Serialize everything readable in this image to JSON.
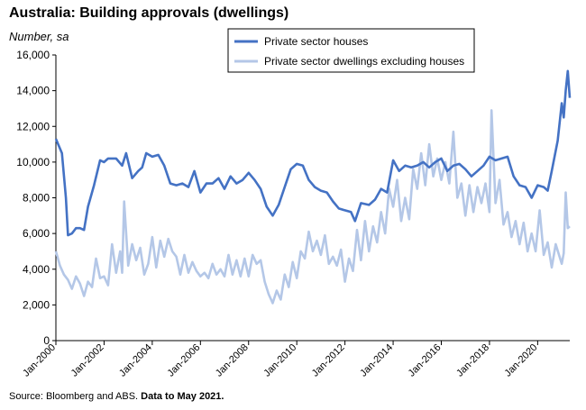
{
  "chart_data": {
    "type": "line",
    "title": "Australia: Building approvals (dwellings)",
    "units_label": "Number, sa",
    "xlim": [
      "2000-01",
      "2021-05"
    ],
    "ylim": [
      0,
      16000
    ],
    "yticks": [
      "0",
      "2,000",
      "4,000",
      "6,000",
      "8,000",
      "10,000",
      "12,000",
      "14,000",
      "16,000"
    ],
    "xticks": [
      "Jan-2000",
      "Jan-2002",
      "Jan-2004",
      "Jan-2006",
      "Jan-2008",
      "Jan-2010",
      "Jan-2012",
      "Jan-2014",
      "Jan-2016",
      "Jan-2018",
      "Jan-2020"
    ],
    "grid": false,
    "legend_position": "top-right",
    "series": [
      {
        "name": "Private sector houses",
        "color": "#4472c4",
        "points": [
          [
            "2000-01",
            11300
          ],
          [
            "2000-04",
            10500
          ],
          [
            "2000-06",
            8000
          ],
          [
            "2000-07",
            5900
          ],
          [
            "2000-09",
            6000
          ],
          [
            "2000-11",
            6300
          ],
          [
            "2001-01",
            6300
          ],
          [
            "2001-03",
            6200
          ],
          [
            "2001-05",
            7500
          ],
          [
            "2001-08",
            8700
          ],
          [
            "2001-11",
            10100
          ],
          [
            "2002-01",
            10000
          ],
          [
            "2002-03",
            10200
          ],
          [
            "2002-07",
            10200
          ],
          [
            "2002-10",
            9800
          ],
          [
            "2002-12",
            10500
          ],
          [
            "2003-03",
            9100
          ],
          [
            "2003-06",
            9500
          ],
          [
            "2003-08",
            9700
          ],
          [
            "2003-10",
            10500
          ],
          [
            "2004-01",
            10300
          ],
          [
            "2004-04",
            10400
          ],
          [
            "2004-07",
            9800
          ],
          [
            "2004-10",
            8800
          ],
          [
            "2005-01",
            8700
          ],
          [
            "2005-04",
            8800
          ],
          [
            "2005-07",
            8600
          ],
          [
            "2005-10",
            9500
          ],
          [
            "2006-01",
            8300
          ],
          [
            "2006-04",
            8800
          ],
          [
            "2006-07",
            8800
          ],
          [
            "2006-10",
            9100
          ],
          [
            "2007-01",
            8500
          ],
          [
            "2007-04",
            9200
          ],
          [
            "2007-07",
            8800
          ],
          [
            "2007-10",
            9000
          ],
          [
            "2008-01",
            9400
          ],
          [
            "2008-04",
            9000
          ],
          [
            "2008-07",
            8500
          ],
          [
            "2008-10",
            7500
          ],
          [
            "2009-01",
            7000
          ],
          [
            "2009-04",
            7600
          ],
          [
            "2009-07",
            8600
          ],
          [
            "2009-10",
            9600
          ],
          [
            "2010-01",
            9900
          ],
          [
            "2010-04",
            9800
          ],
          [
            "2010-07",
            9000
          ],
          [
            "2010-10",
            8600
          ],
          [
            "2011-01",
            8400
          ],
          [
            "2011-04",
            8300
          ],
          [
            "2011-07",
            7800
          ],
          [
            "2011-10",
            7400
          ],
          [
            "2012-01",
            7300
          ],
          [
            "2012-04",
            7200
          ],
          [
            "2012-06",
            6700
          ],
          [
            "2012-09",
            7700
          ],
          [
            "2013-01",
            7600
          ],
          [
            "2013-04",
            7900
          ],
          [
            "2013-07",
            8500
          ],
          [
            "2013-10",
            8300
          ],
          [
            "2014-01",
            10100
          ],
          [
            "2014-04",
            9500
          ],
          [
            "2014-07",
            9800
          ],
          [
            "2014-10",
            9700
          ],
          [
            "2015-01",
            9800
          ],
          [
            "2015-04",
            10000
          ],
          [
            "2015-07",
            9700
          ],
          [
            "2015-10",
            10000
          ],
          [
            "2016-01",
            10200
          ],
          [
            "2016-04",
            9500
          ],
          [
            "2016-07",
            9800
          ],
          [
            "2016-10",
            9900
          ],
          [
            "2017-01",
            9600
          ],
          [
            "2017-04",
            9200
          ],
          [
            "2017-07",
            9500
          ],
          [
            "2017-10",
            9800
          ],
          [
            "2018-01",
            10300
          ],
          [
            "2018-04",
            10100
          ],
          [
            "2018-07",
            10200
          ],
          [
            "2018-10",
            10300
          ],
          [
            "2019-01",
            9200
          ],
          [
            "2019-04",
            8700
          ],
          [
            "2019-07",
            8600
          ],
          [
            "2019-10",
            8000
          ],
          [
            "2020-01",
            8700
          ],
          [
            "2020-04",
            8600
          ],
          [
            "2020-06",
            8400
          ],
          [
            "2020-08",
            9500
          ],
          [
            "2020-11",
            11200
          ],
          [
            "2021-01",
            13300
          ],
          [
            "2021-02",
            12500
          ],
          [
            "2021-03",
            14000
          ],
          [
            "2021-04",
            15100
          ],
          [
            "2021-05",
            13600
          ]
        ]
      },
      {
        "name": "Private sector dwellings excluding houses",
        "color": "#b4c7e7",
        "points": [
          [
            "2000-01",
            5000
          ],
          [
            "2000-03",
            4200
          ],
          [
            "2000-05",
            3700
          ],
          [
            "2000-07",
            3400
          ],
          [
            "2000-09",
            2900
          ],
          [
            "2000-11",
            3600
          ],
          [
            "2001-01",
            3200
          ],
          [
            "2001-03",
            2500
          ],
          [
            "2001-05",
            3300
          ],
          [
            "2001-07",
            3000
          ],
          [
            "2001-09",
            4600
          ],
          [
            "2001-11",
            3500
          ],
          [
            "2002-01",
            3600
          ],
          [
            "2002-03",
            3100
          ],
          [
            "2002-05",
            5400
          ],
          [
            "2002-07",
            3800
          ],
          [
            "2002-09",
            5000
          ],
          [
            "2002-10",
            3800
          ],
          [
            "2002-11",
            7800
          ],
          [
            "2003-01",
            4200
          ],
          [
            "2003-03",
            5400
          ],
          [
            "2003-05",
            4500
          ],
          [
            "2003-07",
            5200
          ],
          [
            "2003-09",
            3700
          ],
          [
            "2003-11",
            4300
          ],
          [
            "2004-01",
            5800
          ],
          [
            "2004-03",
            4100
          ],
          [
            "2004-05",
            5600
          ],
          [
            "2004-07",
            4700
          ],
          [
            "2004-09",
            5700
          ],
          [
            "2004-11",
            5000
          ],
          [
            "2005-01",
            4700
          ],
          [
            "2005-03",
            3700
          ],
          [
            "2005-05",
            4800
          ],
          [
            "2005-07",
            3800
          ],
          [
            "2005-09",
            4400
          ],
          [
            "2005-11",
            3900
          ],
          [
            "2006-01",
            3600
          ],
          [
            "2006-03",
            3800
          ],
          [
            "2006-05",
            3500
          ],
          [
            "2006-07",
            4300
          ],
          [
            "2006-09",
            3700
          ],
          [
            "2006-11",
            4000
          ],
          [
            "2007-01",
            3600
          ],
          [
            "2007-03",
            4800
          ],
          [
            "2007-05",
            3700
          ],
          [
            "2007-07",
            4500
          ],
          [
            "2007-09",
            3600
          ],
          [
            "2007-11",
            4600
          ],
          [
            "2008-01",
            3600
          ],
          [
            "2008-03",
            4800
          ],
          [
            "2008-05",
            4300
          ],
          [
            "2008-07",
            4500
          ],
          [
            "2008-09",
            3300
          ],
          [
            "2008-11",
            2600
          ],
          [
            "2009-01",
            2100
          ],
          [
            "2009-03",
            2800
          ],
          [
            "2009-05",
            2300
          ],
          [
            "2009-07",
            3700
          ],
          [
            "2009-09",
            3000
          ],
          [
            "2009-11",
            4400
          ],
          [
            "2010-01",
            3500
          ],
          [
            "2010-03",
            5000
          ],
          [
            "2010-05",
            4600
          ],
          [
            "2010-07",
            6100
          ],
          [
            "2010-09",
            5000
          ],
          [
            "2010-11",
            5600
          ],
          [
            "2011-01",
            4800
          ],
          [
            "2011-03",
            5900
          ],
          [
            "2011-05",
            4300
          ],
          [
            "2011-07",
            4700
          ],
          [
            "2011-09",
            4200
          ],
          [
            "2011-11",
            5100
          ],
          [
            "2012-01",
            3300
          ],
          [
            "2012-03",
            4600
          ],
          [
            "2012-05",
            3900
          ],
          [
            "2012-07",
            6200
          ],
          [
            "2012-09",
            4500
          ],
          [
            "2012-11",
            6700
          ],
          [
            "2013-01",
            5000
          ],
          [
            "2013-03",
            6400
          ],
          [
            "2013-05",
            5500
          ],
          [
            "2013-07",
            7200
          ],
          [
            "2013-09",
            6000
          ],
          [
            "2013-11",
            8500
          ],
          [
            "2014-01",
            7500
          ],
          [
            "2014-03",
            9000
          ],
          [
            "2014-05",
            6700
          ],
          [
            "2014-07",
            8000
          ],
          [
            "2014-09",
            6800
          ],
          [
            "2014-11",
            9600
          ],
          [
            "2015-01",
            8500
          ],
          [
            "2015-03",
            10500
          ],
          [
            "2015-05",
            8700
          ],
          [
            "2015-07",
            11000
          ],
          [
            "2015-09",
            9200
          ],
          [
            "2015-11",
            10200
          ],
          [
            "2016-01",
            9000
          ],
          [
            "2016-03",
            10000
          ],
          [
            "2016-05",
            8800
          ],
          [
            "2016-07",
            11700
          ],
          [
            "2016-09",
            8000
          ],
          [
            "2016-11",
            8800
          ],
          [
            "2017-01",
            7000
          ],
          [
            "2017-03",
            8700
          ],
          [
            "2017-05",
            7200
          ],
          [
            "2017-07",
            8600
          ],
          [
            "2017-09",
            7700
          ],
          [
            "2017-11",
            8800
          ],
          [
            "2018-01",
            7200
          ],
          [
            "2018-02",
            12900
          ],
          [
            "2018-04",
            7700
          ],
          [
            "2018-06",
            9000
          ],
          [
            "2018-08",
            6500
          ],
          [
            "2018-10",
            7200
          ],
          [
            "2018-12",
            5800
          ],
          [
            "2019-02",
            6700
          ],
          [
            "2019-04",
            5400
          ],
          [
            "2019-06",
            6600
          ],
          [
            "2019-08",
            5000
          ],
          [
            "2019-10",
            6000
          ],
          [
            "2019-12",
            5000
          ],
          [
            "2020-02",
            7300
          ],
          [
            "2020-04",
            4800
          ],
          [
            "2020-06",
            5500
          ],
          [
            "2020-08",
            4100
          ],
          [
            "2020-10",
            5400
          ],
          [
            "2021-01",
            4300
          ],
          [
            "2021-02",
            4900
          ],
          [
            "2021-03",
            8300
          ],
          [
            "2021-04",
            6300
          ],
          [
            "2021-05",
            6400
          ]
        ]
      }
    ]
  },
  "source": {
    "text": "Source: Bloomberg and ABS. ",
    "bold_text": "Data to May 2021."
  }
}
